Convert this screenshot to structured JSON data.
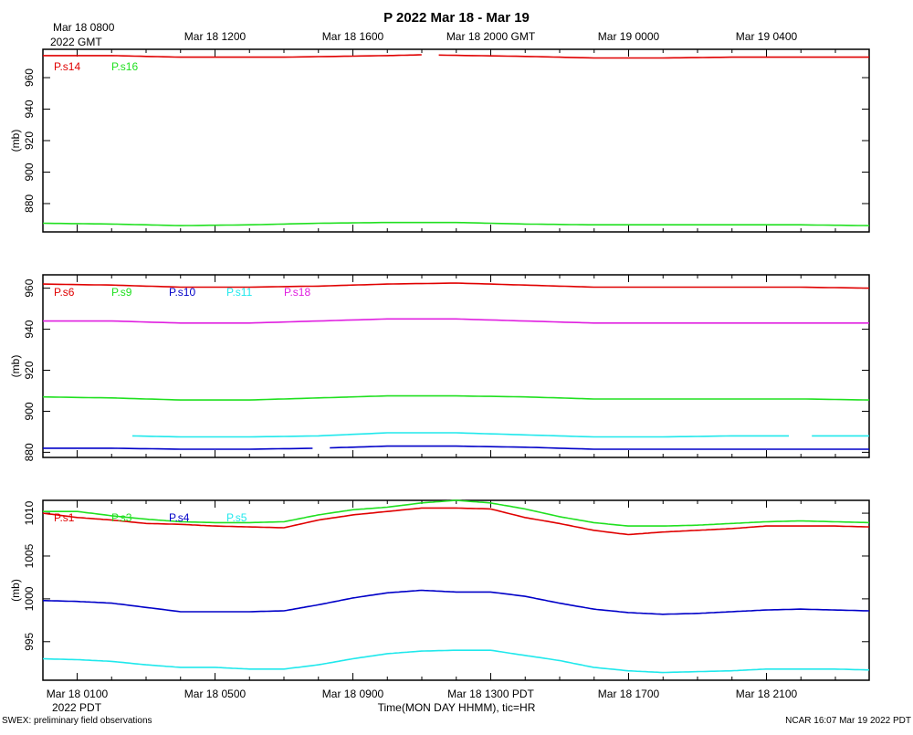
{
  "title": "P 2022 Mar 18 - Mar 19",
  "top_axis": {
    "first_label_line1": "Mar 18 0800",
    "first_label_line2": "2022 GMT",
    "labels": [
      "Mar 18 1200",
      "Mar 18 1600",
      "Mar 18 2000 GMT",
      "Mar 19 0000",
      "Mar 19 0400"
    ]
  },
  "bottom_axis": {
    "labels": [
      "Mar 18 0100",
      "Mar 18 0500",
      "Mar 18 0900",
      "Mar 18 1300 PDT",
      "Mar 18 1700",
      "Mar 18 2100"
    ],
    "year_label": "2022 PDT",
    "xlabel": "Time(MON DAY HHMM), tic=HR"
  },
  "footer": {
    "left": "SWEX: preliminary field observations",
    "right": "NCAR 16:07 Mar 19 2022 PDT"
  },
  "colors": {
    "red": "#e00000",
    "green": "#20e020",
    "blue": "#0000c8",
    "cyan": "#20e8ec",
    "magenta": "#e020e0"
  },
  "chart_data": [
    {
      "type": "line",
      "ylabel": "(mb)",
      "xlim": [
        0,
        24
      ],
      "ylim": [
        862,
        978
      ],
      "yticks": [
        880,
        900,
        920,
        940,
        960
      ],
      "x_units": "hours since Mar 18 0000 PDT",
      "series": [
        {
          "name": "P.s14",
          "color": "#e00000",
          "points": [
            [
              0,
              974
            ],
            [
              2,
              974
            ],
            [
              4,
              973
            ],
            [
              7,
              973
            ],
            [
              10,
              974
            ],
            [
              11,
              974.5
            ],
            [
              14,
              973.5
            ],
            [
              16,
              972.5
            ],
            [
              18,
              972.5
            ],
            [
              20,
              973
            ],
            [
              22,
              973
            ],
            [
              24,
              973
            ]
          ],
          "gaps": [
            [
              11.1,
              11.3
            ]
          ]
        },
        {
          "name": "P.s16",
          "color": "#20e020",
          "points": [
            [
              0,
              867.5
            ],
            [
              2,
              867
            ],
            [
              4,
              866
            ],
            [
              6,
              866.5
            ],
            [
              8,
              867.5
            ],
            [
              10,
              868
            ],
            [
              12,
              868
            ],
            [
              14,
              867
            ],
            [
              16,
              866.5
            ],
            [
              18,
              866.5
            ],
            [
              20,
              866.5
            ],
            [
              22,
              866.5
            ],
            [
              24,
              866
            ]
          ]
        }
      ]
    },
    {
      "type": "line",
      "ylabel": "(mb)",
      "xlim": [
        0,
        24
      ],
      "ylim": [
        877.5,
        966.5
      ],
      "yticks": [
        880,
        900,
        920,
        940,
        960
      ],
      "x_units": "hours since Mar 18 0000 PDT",
      "series": [
        {
          "name": "P.s6",
          "color": "#e00000",
          "points": [
            [
              0,
              962
            ],
            [
              2,
              961.5
            ],
            [
              4,
              960.5
            ],
            [
              6,
              960.5
            ],
            [
              8,
              961
            ],
            [
              10,
              962
            ],
            [
              12,
              962.5
            ],
            [
              14,
              961.5
            ],
            [
              16,
              960.5
            ],
            [
              18,
              960.5
            ],
            [
              20,
              960.5
            ],
            [
              22,
              960.5
            ],
            [
              24,
              960
            ]
          ]
        },
        {
          "name": "P.s9",
          "color": "#20e020",
          "points": [
            [
              0,
              907
            ],
            [
              2,
              906.5
            ],
            [
              4,
              905.5
            ],
            [
              6,
              905.5
            ],
            [
              8,
              906.5
            ],
            [
              10,
              907.5
            ],
            [
              12,
              907.5
            ],
            [
              14,
              907
            ],
            [
              16,
              906
            ],
            [
              18,
              906
            ],
            [
              20,
              906
            ],
            [
              22,
              906
            ],
            [
              24,
              905.5
            ]
          ]
        },
        {
          "name": "P.s10",
          "color": "#0000c8",
          "points": [
            [
              0,
              882
            ],
            [
              2,
              882
            ],
            [
              4,
              881.5
            ],
            [
              6,
              881.5
            ],
            [
              8,
              882
            ],
            [
              10,
              883
            ],
            [
              12,
              883
            ],
            [
              14,
              882.5
            ],
            [
              16,
              881.5
            ],
            [
              18,
              881.5
            ],
            [
              20,
              881.5
            ],
            [
              22,
              881.5
            ],
            [
              24,
              881.5
            ]
          ],
          "gaps": [
            [
              7.9,
              8.2
            ]
          ]
        },
        {
          "name": "P.s11",
          "color": "#20e8ec",
          "points": [
            [
              2.6,
              888
            ],
            [
              4,
              887.5
            ],
            [
              6,
              887.5
            ],
            [
              8,
              888
            ],
            [
              10,
              889.5
            ],
            [
              12,
              889.5
            ],
            [
              14,
              888.5
            ],
            [
              16,
              887.5
            ],
            [
              18,
              887.5
            ],
            [
              20,
              888
            ],
            [
              22,
              888
            ],
            [
              24,
              888
            ]
          ],
          "gaps": [
            [
              21.8,
              22.3
            ]
          ]
        },
        {
          "name": "P.s18",
          "color": "#e020e0",
          "points": [
            [
              0,
              944
            ],
            [
              2,
              944
            ],
            [
              4,
              943
            ],
            [
              6,
              943
            ],
            [
              8,
              944
            ],
            [
              10,
              945
            ],
            [
              12,
              945
            ],
            [
              14,
              944
            ],
            [
              16,
              943
            ],
            [
              18,
              943
            ],
            [
              20,
              943
            ],
            [
              22,
              943
            ],
            [
              24,
              943
            ]
          ]
        }
      ]
    },
    {
      "type": "line",
      "ylabel": "(mb)",
      "xlim": [
        0,
        24
      ],
      "ylim": [
        990.5,
        1011.5
      ],
      "yticks": [
        995,
        1000,
        1005,
        1010
      ],
      "x_units": "hours since Mar 18 0000 PDT",
      "series": [
        {
          "name": "P.s1",
          "color": "#e00000",
          "points": [
            [
              0,
              1010
            ],
            [
              1,
              1009.5
            ],
            [
              2,
              1009.2
            ],
            [
              3,
              1008.8
            ],
            [
              4,
              1008.7
            ],
            [
              5,
              1008.5
            ],
            [
              6,
              1008.4
            ],
            [
              7,
              1008.3
            ],
            [
              8,
              1009.2
            ],
            [
              9,
              1009.8
            ],
            [
              10,
              1010.2
            ],
            [
              11,
              1010.6
            ],
            [
              12,
              1010.6
            ],
            [
              13,
              1010.5
            ],
            [
              14,
              1009.5
            ],
            [
              15,
              1008.8
            ],
            [
              16,
              1008
            ],
            [
              17,
              1007.5
            ],
            [
              18,
              1007.8
            ],
            [
              19,
              1008
            ],
            [
              20,
              1008.2
            ],
            [
              21,
              1008.5
            ],
            [
              22,
              1008.5
            ],
            [
              23,
              1008.5
            ],
            [
              24,
              1008.4
            ]
          ]
        },
        {
          "name": "P.s3",
          "color": "#20e020",
          "points": [
            [
              0,
              1010.2
            ],
            [
              1,
              1010.2
            ],
            [
              2,
              1009.7
            ],
            [
              3,
              1009.3
            ],
            [
              4,
              1009
            ],
            [
              5,
              1008.9
            ],
            [
              6,
              1008.9
            ],
            [
              7,
              1009
            ],
            [
              8,
              1009.8
            ],
            [
              9,
              1010.4
            ],
            [
              10,
              1010.7
            ],
            [
              11,
              1011.2
            ],
            [
              12,
              1011.5
            ],
            [
              13,
              1011.2
            ],
            [
              14,
              1010.5
            ],
            [
              15,
              1009.6
            ],
            [
              16,
              1008.9
            ],
            [
              17,
              1008.5
            ],
            [
              18,
              1008.5
            ],
            [
              19,
              1008.6
            ],
            [
              20,
              1008.8
            ],
            [
              21,
              1009
            ],
            [
              22,
              1009.1
            ],
            [
              23,
              1009
            ],
            [
              24,
              1008.9
            ]
          ]
        },
        {
          "name": "P.s4",
          "color": "#0000c8",
          "points": [
            [
              0,
              999.8
            ],
            [
              1,
              999.7
            ],
            [
              2,
              999.5
            ],
            [
              3,
              999
            ],
            [
              4,
              998.5
            ],
            [
              5,
              998.5
            ],
            [
              6,
              998.5
            ],
            [
              7,
              998.6
            ],
            [
              8,
              999.3
            ],
            [
              9,
              1000.1
            ],
            [
              10,
              1000.7
            ],
            [
              11,
              1001
            ],
            [
              12,
              1000.8
            ],
            [
              13,
              1000.8
            ],
            [
              14,
              1000.3
            ],
            [
              15,
              999.5
            ],
            [
              16,
              998.8
            ],
            [
              17,
              998.4
            ],
            [
              18,
              998.2
            ],
            [
              19,
              998.3
            ],
            [
              20,
              998.5
            ],
            [
              21,
              998.7
            ],
            [
              22,
              998.8
            ],
            [
              23,
              998.7
            ],
            [
              24,
              998.6
            ]
          ]
        },
        {
          "name": "P.s5",
          "color": "#20e8ec",
          "points": [
            [
              0,
              993
            ],
            [
              1,
              992.9
            ],
            [
              2,
              992.7
            ],
            [
              3,
              992.3
            ],
            [
              4,
              992
            ],
            [
              5,
              992
            ],
            [
              6,
              991.8
            ],
            [
              7,
              991.8
            ],
            [
              8,
              992.3
            ],
            [
              9,
              993
            ],
            [
              10,
              993.6
            ],
            [
              11,
              993.9
            ],
            [
              12,
              994
            ],
            [
              13,
              994
            ],
            [
              14,
              993.4
            ],
            [
              15,
              992.8
            ],
            [
              16,
              992
            ],
            [
              17,
              991.6
            ],
            [
              18,
              991.4
            ],
            [
              19,
              991.5
            ],
            [
              20,
              991.6
            ],
            [
              21,
              991.8
            ],
            [
              22,
              991.8
            ],
            [
              23,
              991.8
            ],
            [
              24,
              991.7
            ]
          ]
        }
      ]
    }
  ]
}
